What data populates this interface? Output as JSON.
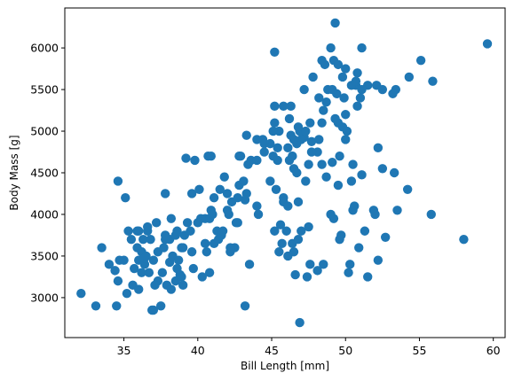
{
  "chart_data": {
    "type": "scatter",
    "title": "",
    "xlabel": "Bill Length [mm]",
    "ylabel": "Body Mass [g]",
    "xlim": [
      31.0,
      60.8
    ],
    "ylim": [
      2520,
      6480
    ],
    "xticks": [
      35,
      40,
      45,
      50,
      55,
      60
    ],
    "yticks": [
      3000,
      3500,
      4000,
      4500,
      5000,
      5500,
      6000
    ],
    "grid": false,
    "marker_color": "#1f77b4",
    "series": [
      {
        "points": [
          [
            32.1,
            3050
          ],
          [
            33.1,
            2900
          ],
          [
            33.5,
            3600
          ],
          [
            34.0,
            3400
          ],
          [
            34.4,
            3325
          ],
          [
            34.5,
            2900
          ],
          [
            34.6,
            4400
          ],
          [
            34.6,
            3200
          ],
          [
            34.7,
            3450
          ],
          [
            35.0,
            3450
          ],
          [
            35.1,
            4200
          ],
          [
            35.2,
            3050
          ],
          [
            35.3,
            3800
          ],
          [
            35.5,
            3700
          ],
          [
            35.6,
            3150
          ],
          [
            35.7,
            3350
          ],
          [
            35.9,
            3800
          ],
          [
            35.9,
            3600
          ],
          [
            36.0,
            3450
          ],
          [
            36.0,
            3100
          ],
          [
            36.0,
            3800
          ],
          [
            36.2,
            3550
          ],
          [
            36.2,
            3300
          ],
          [
            36.3,
            3700
          ],
          [
            36.4,
            3400
          ],
          [
            36.5,
            3500
          ],
          [
            36.6,
            3800
          ],
          [
            36.7,
            3300
          ],
          [
            36.8,
            3700
          ],
          [
            36.9,
            2850
          ],
          [
            37.0,
            3450
          ],
          [
            37.0,
            2850
          ],
          [
            37.2,
            3900
          ],
          [
            37.3,
            3200
          ],
          [
            37.3,
            3550
          ],
          [
            37.5,
            2900
          ],
          [
            37.6,
            3300
          ],
          [
            37.7,
            3600
          ],
          [
            37.8,
            4250
          ],
          [
            37.8,
            3700
          ],
          [
            37.9,
            3150
          ],
          [
            38.1,
            3425
          ],
          [
            38.1,
            3700
          ],
          [
            38.2,
            3950
          ],
          [
            38.3,
            3500
          ],
          [
            38.5,
            3200
          ],
          [
            38.6,
            3800
          ],
          [
            38.6,
            3350
          ],
          [
            38.7,
            3450
          ],
          [
            38.8,
            3275
          ],
          [
            38.9,
            3600
          ],
          [
            39.0,
            3150
          ],
          [
            39.1,
            3750
          ],
          [
            39.2,
            4675
          ],
          [
            39.3,
            3900
          ],
          [
            39.5,
            3800
          ],
          [
            39.6,
            4250
          ],
          [
            39.7,
            3350
          ],
          [
            39.8,
            4650
          ],
          [
            40.1,
            4300
          ],
          [
            40.2,
            3950
          ],
          [
            40.3,
            3250
          ],
          [
            40.5,
            3950
          ],
          [
            40.6,
            3550
          ],
          [
            40.7,
            4700
          ],
          [
            40.8,
            3950
          ],
          [
            40.9,
            4050
          ],
          [
            41.1,
            3650
          ],
          [
            41.1,
            4200
          ],
          [
            41.3,
            3800
          ],
          [
            41.4,
            3700
          ],
          [
            41.5,
            4300
          ],
          [
            41.6,
            3750
          ],
          [
            41.8,
            4450
          ],
          [
            42.0,
            4050
          ],
          [
            42.1,
            4000
          ],
          [
            42.2,
            3550
          ],
          [
            42.3,
            4150
          ],
          [
            42.5,
            3600
          ],
          [
            42.7,
            4200
          ],
          [
            42.8,
            4350
          ],
          [
            42.9,
            4700
          ],
          [
            43.1,
            4400
          ],
          [
            43.2,
            2900
          ],
          [
            43.3,
            4250
          ],
          [
            43.5,
            3400
          ],
          [
            44.0,
            4100
          ],
          [
            44.1,
            4000
          ],
          [
            44.4,
            4900
          ],
          [
            45.8,
            4200
          ],
          [
            36.4,
            3475
          ],
          [
            36.6,
            3850
          ],
          [
            37.1,
            3150
          ],
          [
            37.8,
            3750
          ],
          [
            38.2,
            3100
          ],
          [
            38.9,
            3250
          ],
          [
            39.0,
            3600
          ],
          [
            39.6,
            3550
          ],
          [
            40.0,
            3900
          ],
          [
            40.8,
            3300
          ],
          [
            41.0,
            4000
          ],
          [
            41.7,
            3800
          ],
          [
            42.6,
            3900
          ],
          [
            43.2,
            4175
          ],
          [
            45.6,
            3875
          ],
          [
            46.0,
            3800
          ],
          [
            47.0,
            3800
          ],
          [
            38.5,
            3750
          ],
          [
            40.5,
            3650
          ],
          [
            42.2,
            3600
          ],
          [
            44.9,
            4400
          ],
          [
            45.2,
            3800
          ],
          [
            45.5,
            3550
          ],
          [
            45.7,
            3650
          ],
          [
            46.1,
            3500
          ],
          [
            46.4,
            3650
          ],
          [
            46.5,
            3550
          ],
          [
            46.6,
            3275
          ],
          [
            46.8,
            3700
          ],
          [
            46.9,
            2700
          ],
          [
            47.4,
            3250
          ],
          [
            47.5,
            3850
          ],
          [
            47.6,
            3400
          ],
          [
            48.1,
            3325
          ],
          [
            48.5,
            3400
          ],
          [
            49.0,
            4000
          ],
          [
            49.2,
            3950
          ],
          [
            49.6,
            3700
          ],
          [
            49.7,
            3750
          ],
          [
            50.2,
            3300
          ],
          [
            50.3,
            3400
          ],
          [
            50.5,
            4050
          ],
          [
            50.6,
            4100
          ],
          [
            50.9,
            3600
          ],
          [
            51.3,
            3800
          ],
          [
            51.5,
            3250
          ],
          [
            51.9,
            4050
          ],
          [
            52.0,
            4000
          ],
          [
            52.2,
            3450
          ],
          [
            52.7,
            3725
          ],
          [
            53.5,
            4050
          ],
          [
            54.2,
            4300
          ],
          [
            55.8,
            4000
          ],
          [
            58.0,
            3700
          ],
          [
            40.9,
            4700
          ],
          [
            42.0,
            4250
          ],
          [
            42.8,
            4700
          ],
          [
            43.3,
            4950
          ],
          [
            43.4,
            4600
          ],
          [
            44.0,
            4900
          ],
          [
            44.5,
            4750
          ],
          [
            44.9,
            4850
          ],
          [
            45.1,
            4700
          ],
          [
            45.3,
            4300
          ],
          [
            45.4,
            4800
          ],
          [
            45.5,
            5000
          ],
          [
            45.8,
            4150
          ],
          [
            46.1,
            4800
          ],
          [
            46.2,
            4650
          ],
          [
            46.4,
            4700
          ],
          [
            46.5,
            4550
          ],
          [
            46.7,
            4850
          ],
          [
            46.8,
            4150
          ],
          [
            47.2,
            4925
          ],
          [
            47.3,
            4400
          ],
          [
            47.5,
            4600
          ],
          [
            47.7,
            4875
          ],
          [
            48.1,
            4750
          ],
          [
            48.4,
            4600
          ],
          [
            48.7,
            4450
          ],
          [
            49.1,
            4625
          ],
          [
            49.4,
            5450
          ],
          [
            49.5,
            5100
          ],
          [
            49.8,
            5050
          ],
          [
            50.0,
            4900
          ],
          [
            50.1,
            5000
          ],
          [
            50.4,
            4400
          ],
          [
            50.7,
            5550
          ],
          [
            51.1,
            4475
          ],
          [
            51.5,
            5550
          ],
          [
            52.1,
            5550
          ],
          [
            52.2,
            4800
          ],
          [
            53.4,
            5500
          ],
          [
            54.3,
            5650
          ],
          [
            55.1,
            5850
          ],
          [
            55.9,
            5600
          ],
          [
            59.6,
            6050
          ],
          [
            49.3,
            5150
          ],
          [
            49.9,
            5400
          ],
          [
            50.8,
            5700
          ],
          [
            48.2,
            4900
          ],
          [
            47.0,
            4900
          ],
          [
            45.2,
            5300
          ],
          [
            46.3,
            5300
          ],
          [
            48.6,
            5800
          ],
          [
            50.0,
            5200
          ],
          [
            51.0,
            5400
          ],
          [
            46.9,
            5000
          ],
          [
            47.6,
            5100
          ],
          [
            45.2,
            5950
          ],
          [
            45.2,
            5100
          ],
          [
            45.8,
            5300
          ],
          [
            46.2,
            5150
          ],
          [
            46.8,
            5050
          ],
          [
            47.3,
            5000
          ],
          [
            47.8,
            5650
          ],
          [
            48.2,
            5400
          ],
          [
            48.5,
            5250
          ],
          [
            48.7,
            5350
          ],
          [
            48.8,
            5500
          ],
          [
            49.1,
            5500
          ],
          [
            49.2,
            5850
          ],
          [
            49.5,
            5800
          ],
          [
            49.8,
            5650
          ],
          [
            50.0,
            5750
          ],
          [
            50.4,
            5550
          ],
          [
            50.7,
            5600
          ],
          [
            50.8,
            5300
          ],
          [
            51.1,
            5500
          ],
          [
            53.2,
            5450
          ],
          [
            52.5,
            5500
          ],
          [
            49.0,
            6000
          ],
          [
            51.1,
            6000
          ],
          [
            49.3,
            6300
          ],
          [
            48.4,
            5850
          ],
          [
            46.3,
            4950
          ],
          [
            45.1,
            5000
          ],
          [
            43.6,
            4650
          ],
          [
            44.5,
            4850
          ],
          [
            47.2,
            5500
          ],
          [
            48.4,
            5100
          ],
          [
            46.4,
            4700
          ],
          [
            46.5,
            4900
          ],
          [
            47.7,
            4750
          ],
          [
            49.6,
            4700
          ],
          [
            49.5,
            4350
          ],
          [
            50.5,
            4600
          ],
          [
            52.5,
            4550
          ],
          [
            53.3,
            4500
          ],
          [
            42.7,
            3900
          ],
          [
            44.0,
            4650
          ],
          [
            45.4,
            4650
          ],
          [
            46.1,
            4100
          ],
          [
            46.7,
            4500
          ]
        ]
      }
    ]
  }
}
